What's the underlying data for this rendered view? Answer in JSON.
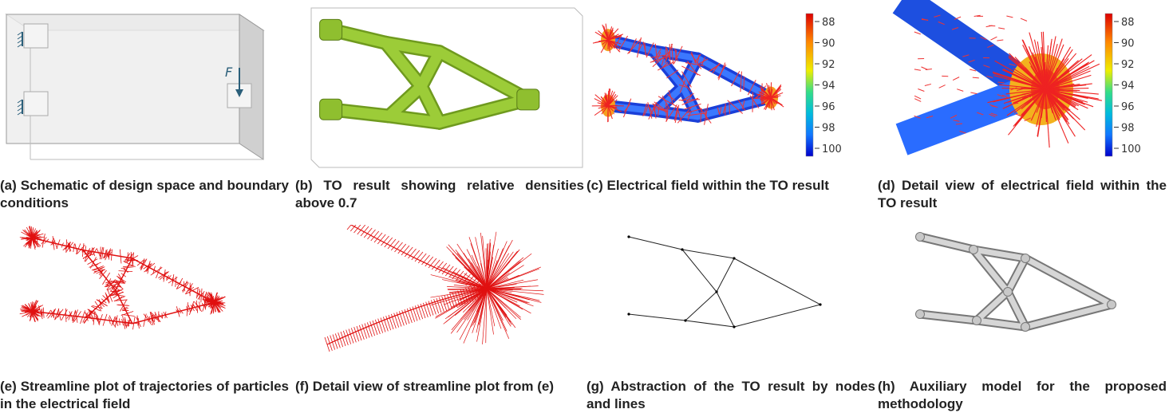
{
  "panels": [
    {
      "caption": "(a) Schematic of design space and boundary conditions",
      "force_label": "F"
    },
    {
      "caption": "(b) TO result showing relative densities above 0.7"
    },
    {
      "caption": "(c) Electrical field within the TO result",
      "colorbar_ticks": [
        88,
        90,
        92,
        94,
        96,
        98,
        100
      ]
    },
    {
      "caption": "(d) Detail view of electrical field within the TO result",
      "colorbar_ticks": [
        88,
        90,
        92,
        94,
        96,
        98,
        100
      ]
    },
    {
      "caption": "(e) Streamline plot of trajectories of particles in the electrical field"
    },
    {
      "caption": "(f) Detail view of streamline plot from (e)"
    },
    {
      "caption": "(g) Abstraction of the TO result by nodes and lines"
    },
    {
      "caption": "(h) Auxiliary model for the proposed methodology"
    }
  ]
}
